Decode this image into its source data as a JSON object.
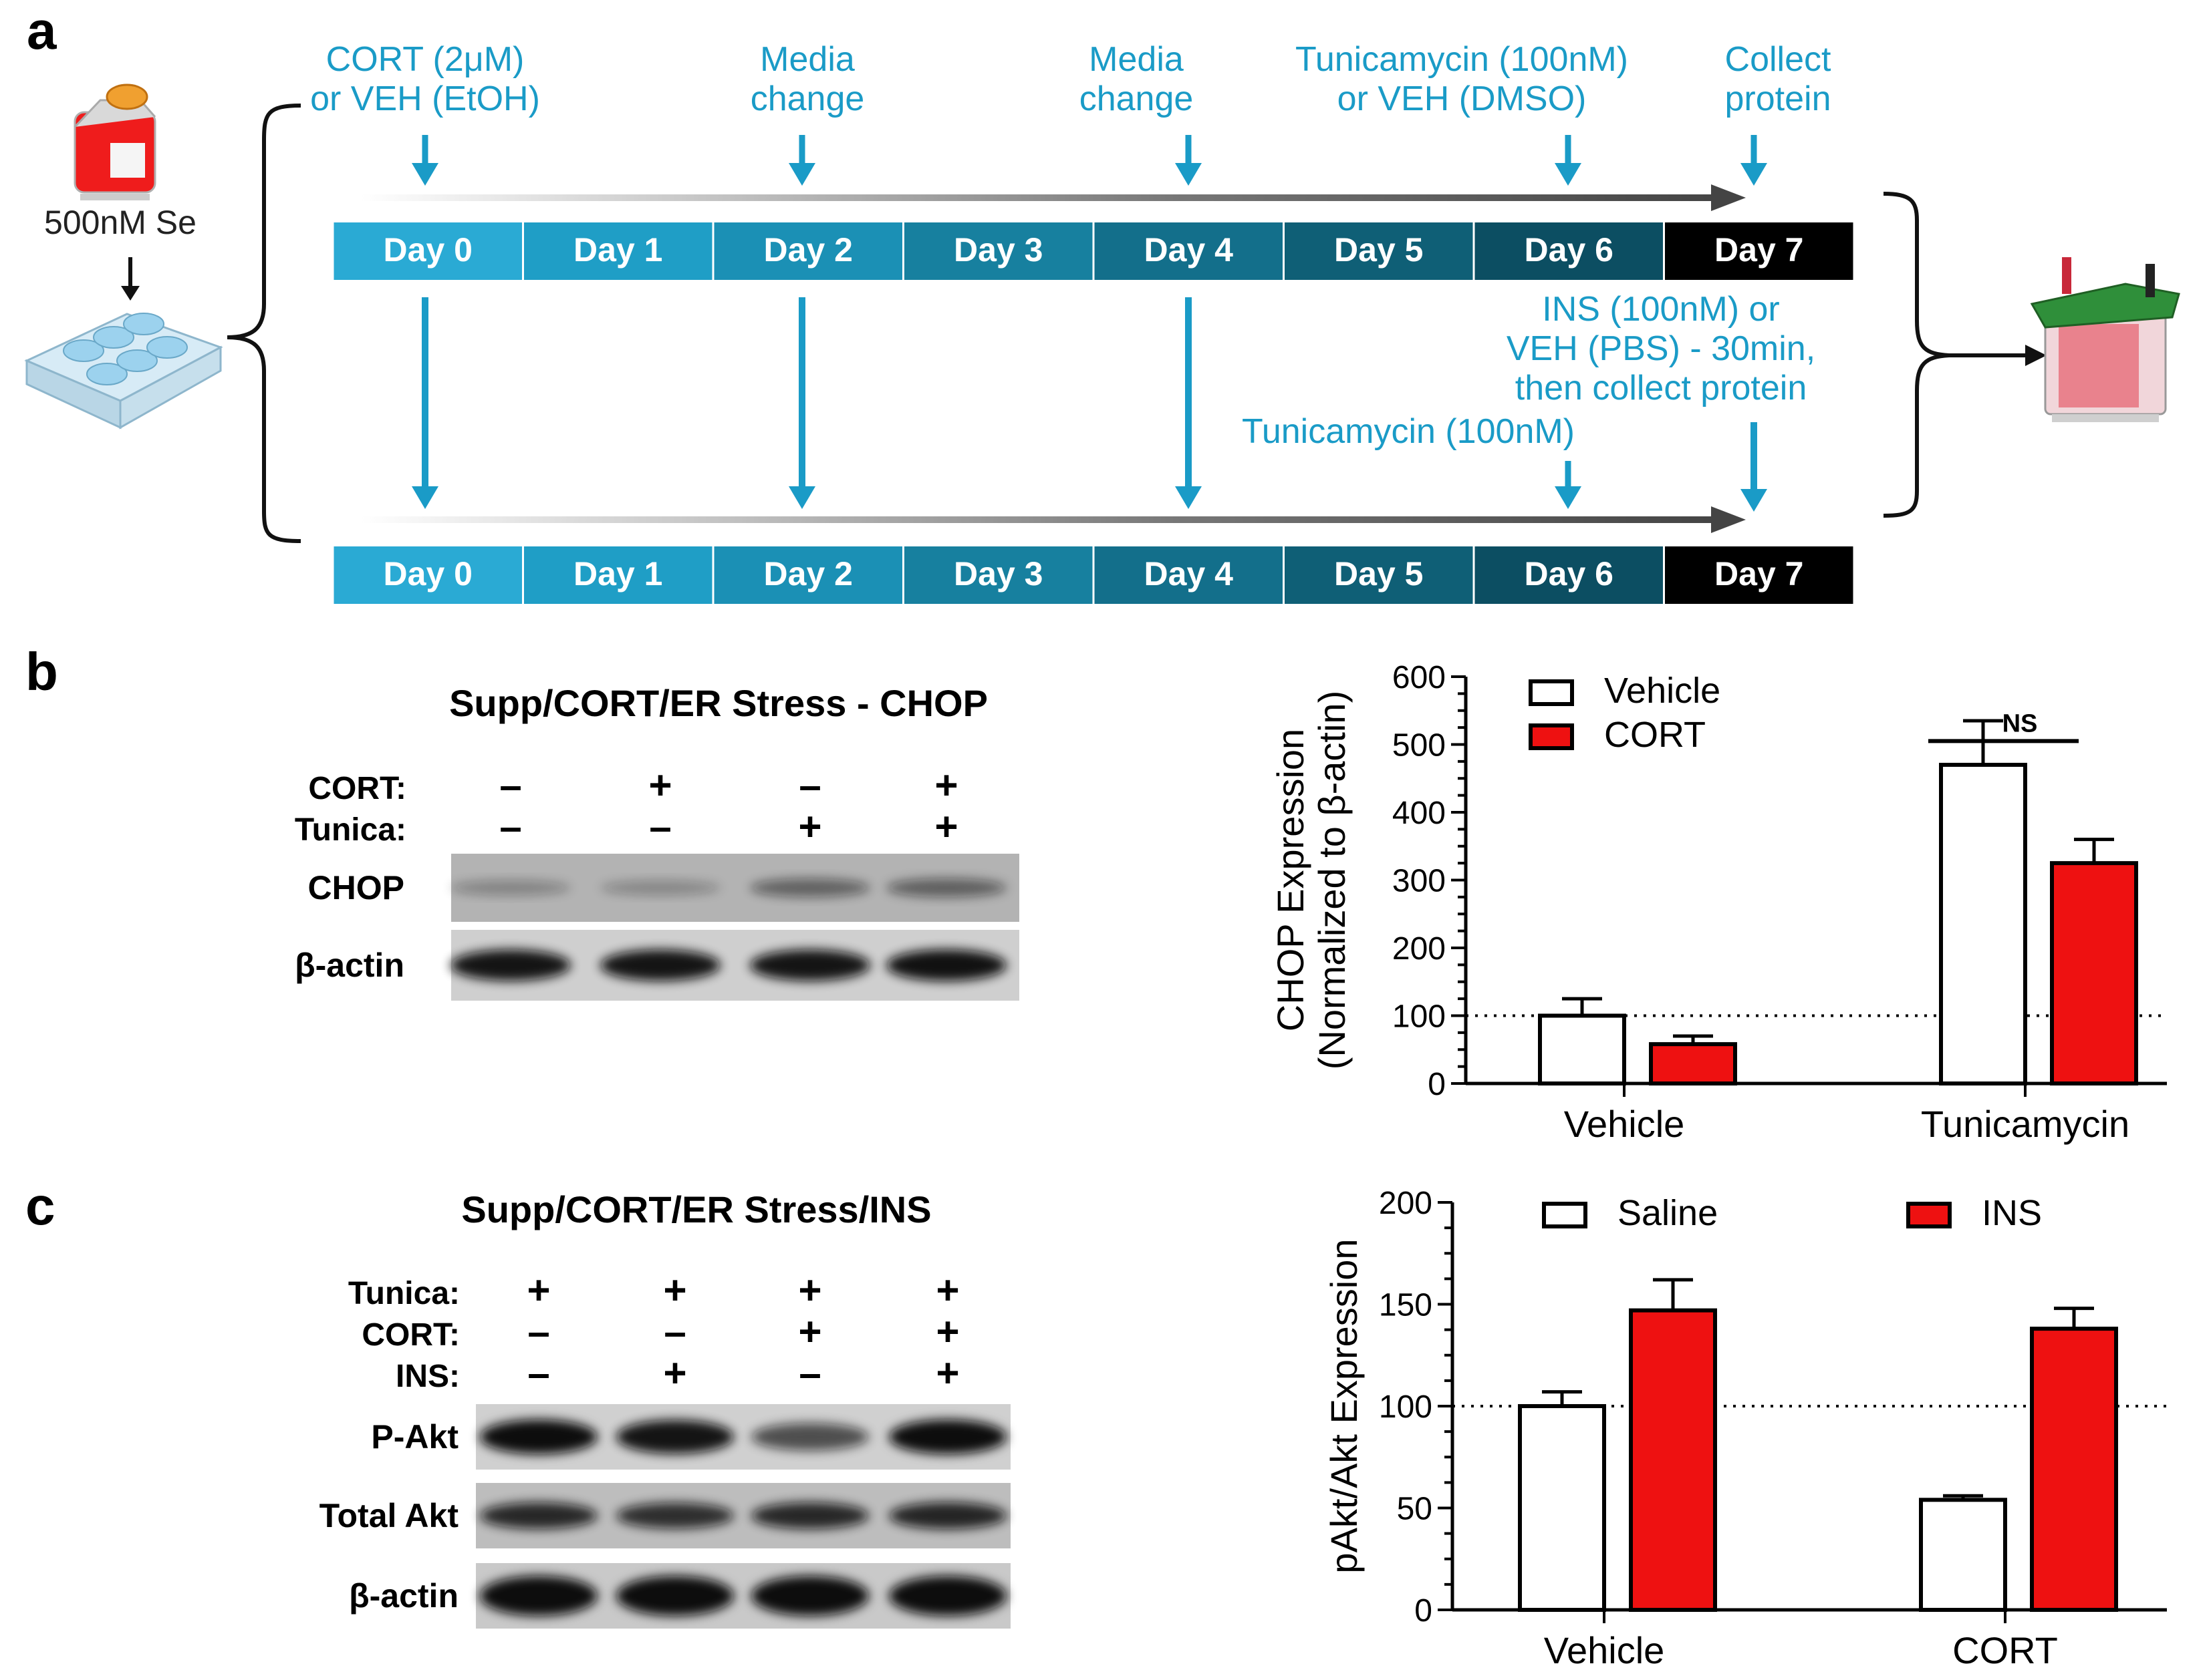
{
  "panels": {
    "a": {
      "letter": "a",
      "culture_label": "500nM Se",
      "top_annotations": [
        {
          "day": 0,
          "lines": [
            "CORT (2μM)",
            "or VEH (EtOH)"
          ]
        },
        {
          "day": 2,
          "lines": [
            "Media",
            "change"
          ]
        },
        {
          "day": 4,
          "lines": [
            "Media",
            "change"
          ]
        },
        {
          "day": 6,
          "lines": [
            "Tunicamycin (100nM)",
            "or VEH (DMSO)"
          ]
        },
        {
          "day": 7,
          "lines": [
            "Collect",
            "protein"
          ]
        }
      ],
      "bottom_annotations": [
        {
          "day": 7,
          "lines": [
            "INS (100nM) or",
            "VEH (PBS) - 30min,",
            "then collect protein"
          ]
        },
        {
          "day": 6,
          "lines": [
            "Tunicamycin (100nM)"
          ]
        }
      ],
      "day_labels": [
        "Day 0",
        "Day 1",
        "Day 2",
        "Day 3",
        "Day 4",
        "Day 5",
        "Day 6",
        "Day 7"
      ],
      "day_colors": [
        "#2aaad4",
        "#1f9ec6",
        "#1b90b5",
        "#17809f",
        "#136f8b",
        "#0f5f76",
        "#0c4e62",
        "#000000"
      ],
      "annotation_color": "#1a9bc7"
    },
    "b": {
      "letter": "b",
      "blot_title": "Supp/CORT/ER Stress - CHOP",
      "conditions": [
        {
          "name": "CORT:",
          "signs": [
            "–",
            "+",
            "–",
            "+"
          ]
        },
        {
          "name": "Tunica:",
          "signs": [
            "–",
            "–",
            "+",
            "+"
          ]
        }
      ],
      "bands": [
        "CHOP",
        "β-actin"
      ]
    },
    "c": {
      "letter": "c",
      "blot_title": "Supp/CORT/ER Stress/INS",
      "conditions": [
        {
          "name": "Tunica:",
          "signs": [
            "+",
            "+",
            "+",
            "+"
          ]
        },
        {
          "name": "CORT:",
          "signs": [
            "–",
            "–",
            "+",
            "+"
          ]
        },
        {
          "name": "INS:",
          "signs": [
            "–",
            "+",
            "–",
            "+"
          ]
        }
      ],
      "bands": [
        "P-Akt",
        "Total Akt",
        "β-actin"
      ]
    }
  },
  "chart_data": [
    {
      "type": "bar",
      "panel": "b",
      "categories": [
        "Vehicle",
        "Tunicamycin"
      ],
      "series": [
        {
          "name": "Vehicle",
          "values": [
            100,
            470
          ],
          "errors": [
            25,
            65
          ],
          "color": "#ffffff"
        },
        {
          "name": "CORT",
          "values": [
            58,
            325
          ],
          "errors": [
            12,
            35
          ],
          "color": "#ee1111"
        }
      ],
      "ylabel": [
        "CHOP Expression",
        "(Normalized to β-actin)"
      ],
      "ylim": [
        0,
        600
      ],
      "yticks": [
        0,
        100,
        200,
        300,
        400,
        500,
        600
      ],
      "reference_line": 100,
      "legend_position": "top-left",
      "annotations": [
        {
          "text": "NS",
          "category": "Tunicamycin"
        }
      ]
    },
    {
      "type": "bar",
      "panel": "c",
      "categories": [
        "Vehicle",
        "CORT"
      ],
      "series": [
        {
          "name": "Saline",
          "values": [
            100,
            54
          ],
          "errors": [
            7,
            2
          ],
          "color": "#ffffff"
        },
        {
          "name": "INS",
          "values": [
            147,
            138
          ],
          "errors": [
            15,
            10
          ],
          "color": "#ee1111"
        }
      ],
      "ylabel": [
        "pAkt/Akt Expression"
      ],
      "ylim": [
        0,
        200
      ],
      "yticks": [
        0,
        50,
        100,
        150,
        200
      ],
      "reference_line": 100,
      "legend_position": "top"
    }
  ]
}
